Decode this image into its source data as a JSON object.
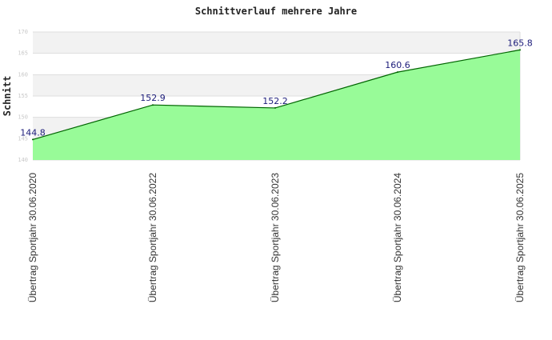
{
  "chart_data": {
    "type": "area",
    "title": "Schnittverlauf mehrere Jahre",
    "ylabel": "Schnitt",
    "xlabel": "",
    "categories": [
      "Übertrag Sportjahr 30.06.2020",
      "Übertrag Sportjahr 30.06.2022",
      "Übertrag Sportjahr 30.06.2023",
      "Übertrag Sportjahr 30.06.2024",
      "Übertrag Sportjahr 30.06.2025"
    ],
    "values": [
      144.8,
      152.9,
      152.2,
      160.6,
      165.8
    ],
    "value_labels": [
      "144.8",
      "152.9",
      "152.2",
      "160.6",
      "165.8"
    ],
    "ylim": [
      140,
      170
    ],
    "yticks": [
      140,
      145,
      150,
      155,
      160,
      165,
      170
    ],
    "ytick_labels": [
      "140",
      "145",
      "150",
      "155",
      "160",
      "165",
      "170"
    ],
    "grid": true,
    "colors": {
      "fill": "#98fb98",
      "line": "#006400",
      "band": "#f2f2f2",
      "grid": "#dedede",
      "label": "#1c1c7a"
    }
  }
}
